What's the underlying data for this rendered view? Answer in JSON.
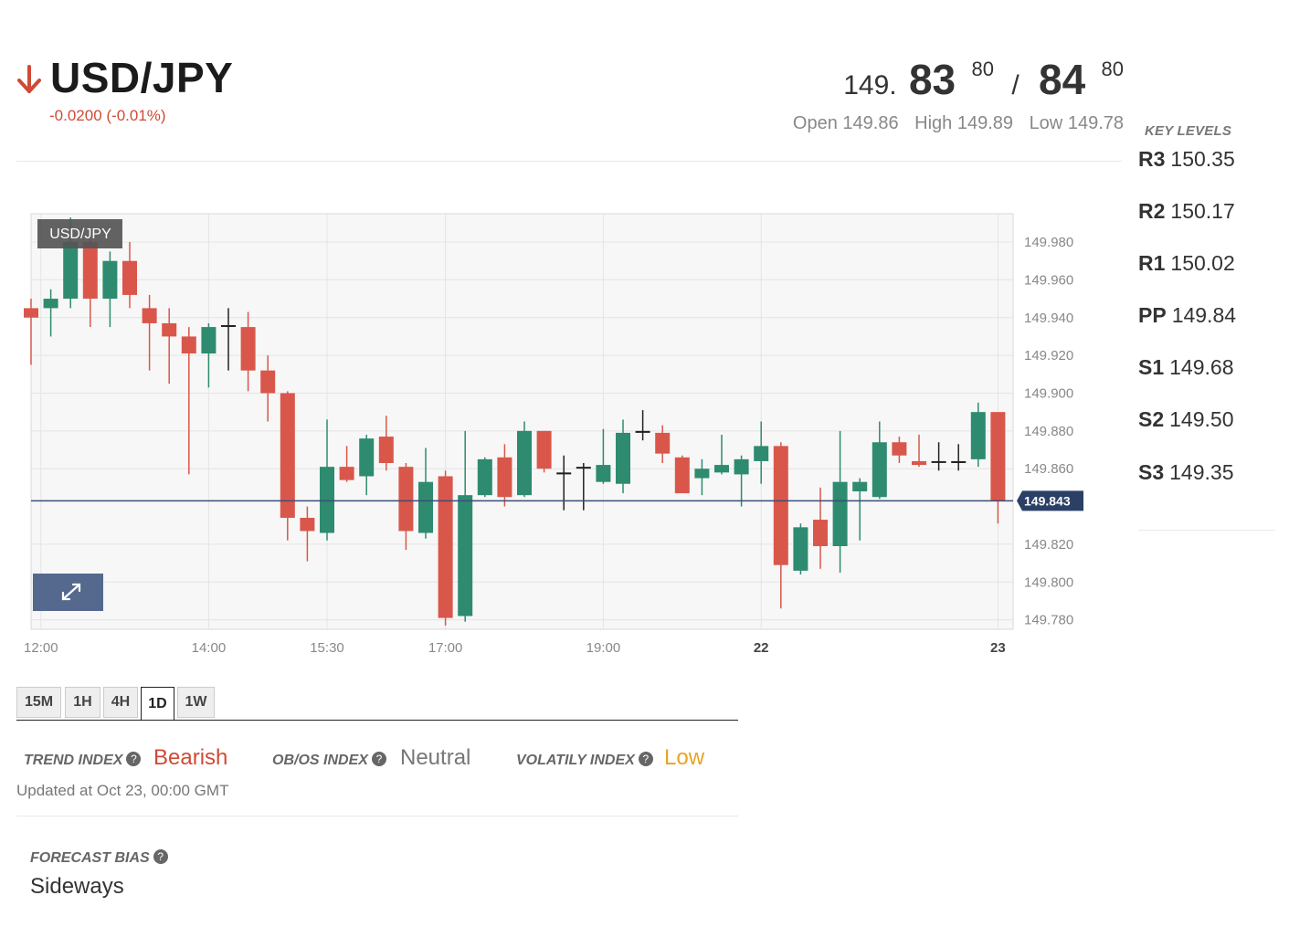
{
  "header": {
    "pair": "USD/JPY",
    "direction_icon": "arrow-down-icon",
    "change": "-0.0200 (-0.01%)",
    "price": {
      "prefix": "149.",
      "bid_big": "83",
      "bid_sup": "80",
      "separator": "/",
      "ask_big": "84",
      "ask_sup": "80"
    },
    "open_label": "Open",
    "open": "149.86",
    "high_label": "High",
    "high": "149.89",
    "low_label": "Low",
    "low": "149.78"
  },
  "key_levels": {
    "title": "KEY LEVELS",
    "levels": [
      {
        "name": "R3",
        "value": "150.35"
      },
      {
        "name": "R2",
        "value": "150.17"
      },
      {
        "name": "R1",
        "value": "150.02"
      },
      {
        "name": "PP",
        "value": "149.84"
      },
      {
        "name": "S1",
        "value": "149.68"
      },
      {
        "name": "S2",
        "value": "149.50"
      },
      {
        "name": "S3",
        "value": "149.35"
      }
    ]
  },
  "chart": {
    "series_tag": "USD/JPY",
    "expand_icon": "expand-icon",
    "current_price_label": "149.843"
  },
  "chart_data": {
    "type": "candlestick",
    "y_ticks": [
      "149.980",
      "149.960",
      "149.940",
      "149.920",
      "149.900",
      "149.880",
      "149.860",
      "149.820",
      "149.800",
      "149.780"
    ],
    "y_range": [
      149.775,
      149.995
    ],
    "current_price": 149.843,
    "x_ticks": [
      {
        "label": "12:00",
        "index": 0.5
      },
      {
        "label": "14:00",
        "index": 9
      },
      {
        "label": "15:30",
        "index": 15
      },
      {
        "label": "17:00",
        "index": 21
      },
      {
        "label": "19:00",
        "index": 29
      },
      {
        "label": "22",
        "index": 37,
        "bold": true
      },
      {
        "label": "23",
        "index": 49,
        "bold": true
      }
    ],
    "colors": {
      "up": "#2e8b6f",
      "down": "#d9574a",
      "doji": "#222222"
    },
    "candles": [
      [
        149.945,
        149.95,
        149.915,
        149.94
      ],
      [
        149.945,
        149.955,
        149.93,
        149.95
      ],
      [
        149.95,
        149.993,
        149.945,
        149.98
      ],
      [
        149.98,
        149.985,
        149.935,
        149.95
      ],
      [
        149.95,
        149.975,
        149.935,
        149.97
      ],
      [
        149.97,
        149.98,
        149.945,
        149.952
      ],
      [
        149.945,
        149.952,
        149.912,
        149.937
      ],
      [
        149.937,
        149.945,
        149.905,
        149.93
      ],
      [
        149.93,
        149.935,
        149.857,
        149.921
      ],
      [
        149.921,
        149.937,
        149.903,
        149.935
      ],
      [
        149.936,
        149.945,
        149.912,
        149.936
      ],
      [
        149.935,
        149.943,
        149.901,
        149.912
      ],
      [
        149.912,
        149.92,
        149.885,
        149.9
      ],
      [
        149.9,
        149.901,
        149.822,
        149.834
      ],
      [
        149.834,
        149.84,
        149.811,
        149.827
      ],
      [
        149.826,
        149.886,
        149.822,
        149.861
      ],
      [
        149.861,
        149.872,
        149.853,
        149.854
      ],
      [
        149.856,
        149.878,
        149.846,
        149.876
      ],
      [
        149.877,
        149.888,
        149.859,
        149.863
      ],
      [
        149.861,
        149.863,
        149.817,
        149.827
      ],
      [
        149.826,
        149.871,
        149.823,
        149.853
      ],
      [
        149.856,
        149.859,
        149.777,
        149.781
      ],
      [
        149.782,
        149.88,
        149.779,
        149.846
      ],
      [
        149.846,
        149.866,
        149.845,
        149.865
      ],
      [
        149.866,
        149.873,
        149.84,
        149.845
      ],
      [
        149.846,
        149.885,
        149.845,
        149.88
      ],
      [
        149.88,
        149.88,
        149.858,
        149.86
      ],
      [
        149.858,
        149.867,
        149.838,
        149.857
      ],
      [
        149.861,
        149.863,
        149.838,
        149.861
      ],
      [
        149.853,
        149.881,
        149.852,
        149.862
      ],
      [
        149.852,
        149.886,
        149.847,
        149.879
      ],
      [
        149.879,
        149.891,
        149.875,
        149.88
      ],
      [
        149.879,
        149.883,
        149.863,
        149.868
      ],
      [
        149.866,
        149.867,
        149.848,
        149.847
      ],
      [
        149.855,
        149.865,
        149.846,
        149.86
      ],
      [
        149.858,
        149.878,
        149.857,
        149.862
      ],
      [
        149.857,
        149.867,
        149.84,
        149.865
      ],
      [
        149.864,
        149.885,
        149.852,
        149.872
      ],
      [
        149.872,
        149.874,
        149.786,
        149.809
      ],
      [
        149.806,
        149.831,
        149.804,
        149.829
      ],
      [
        149.833,
        149.85,
        149.807,
        149.819
      ],
      [
        149.819,
        149.88,
        149.805,
        149.853
      ],
      [
        149.848,
        149.855,
        149.822,
        149.853
      ],
      [
        149.845,
        149.885,
        149.844,
        149.874
      ],
      [
        149.874,
        149.877,
        149.863,
        149.867
      ],
      [
        149.864,
        149.878,
        149.861,
        149.862
      ],
      [
        149.864,
        149.874,
        149.859,
        149.864
      ],
      [
        149.864,
        149.873,
        149.859,
        149.863
      ],
      [
        149.865,
        149.895,
        149.861,
        149.89
      ],
      [
        149.89,
        149.889,
        149.831,
        149.843
      ]
    ]
  },
  "timeframes": {
    "items": [
      "15M",
      "1H",
      "4H",
      "1D",
      "1W"
    ],
    "active": "1D"
  },
  "indicators": {
    "trend_label": "TREND INDEX",
    "trend_value": "Bearish",
    "obos_label": "OB/OS INDEX",
    "obos_value": "Neutral",
    "volatility_label": "VOLATILY INDEX",
    "volatility_value": "Low",
    "help_icon": "question-icon",
    "colors": {
      "bearish": "#d04a35",
      "neutral": "#777777",
      "low": "#e8a425"
    }
  },
  "updated": "Updated at Oct 23, 00:00 GMT",
  "forecast": {
    "label": "FORECAST BIAS",
    "value": "Sideways"
  }
}
